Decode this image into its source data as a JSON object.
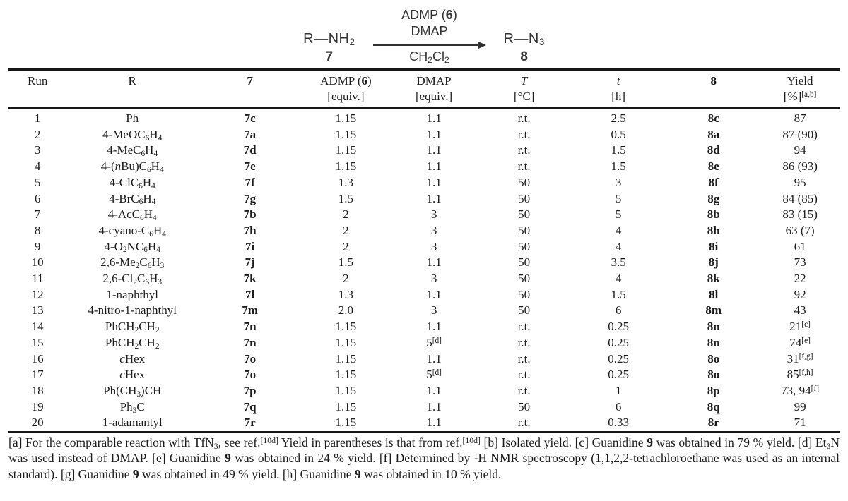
{
  "scheme": {
    "reactant": "R—NH~2~",
    "reactant_label": "7",
    "reagent_line1": "ADMP (**6**)",
    "reagent_line2": "DMAP",
    "solvent": "CH~2~Cl~2~",
    "product": "R—N~3~",
    "product_label": "8"
  },
  "table": {
    "columns": [
      {
        "key": "run",
        "line1": "Run",
        "line2": ""
      },
      {
        "key": "r",
        "line1": "R",
        "line2": ""
      },
      {
        "key": "compound-7",
        "line1": "**7**",
        "line2": ""
      },
      {
        "key": "admp-equiv",
        "line1": "ADMP (**6**)",
        "line2": "[equiv.]"
      },
      {
        "key": "dmap-equiv",
        "line1": "DMAP",
        "line2": "[equiv.]"
      },
      {
        "key": "temperature",
        "line1": "*T*",
        "line2": "[°C]"
      },
      {
        "key": "time",
        "line1": "*t*",
        "line2": "[h]"
      },
      {
        "key": "compound-8",
        "line1": "**8**",
        "line2": ""
      },
      {
        "key": "yield",
        "line1": "Yield",
        "line2": "[%]^[a,b]^"
      }
    ],
    "rows": [
      [
        "1",
        "Ph",
        "7c",
        "1.15",
        "1.1",
        "r.t.",
        "2.5",
        "8c",
        "87"
      ],
      [
        "2",
        "4-MeOC~6~H~4~",
        "7a",
        "1.15",
        "1.1",
        "r.t.",
        "0.5",
        "8a",
        "87 (90)"
      ],
      [
        "3",
        "4-MeC~6~H~4~",
        "7d",
        "1.15",
        "1.1",
        "r.t.",
        "1.5",
        "8d",
        "94"
      ],
      [
        "4",
        "4-(*n*Bu)C~6~H~4~",
        "7e",
        "1.15",
        "1.1",
        "r.t.",
        "1.5",
        "8e",
        "86 (93)"
      ],
      [
        "5",
        "4-ClC~6~H~4~",
        "7f",
        "1.3",
        "1.1",
        "50",
        "3",
        "8f",
        "95"
      ],
      [
        "6",
        "4-BrC~6~H~4~",
        "7g",
        "1.5",
        "1.1",
        "50",
        "5",
        "8g",
        "84 (85)"
      ],
      [
        "7",
        "4-AcC~6~H~4~",
        "7b",
        "2",
        "3",
        "50",
        "5",
        "8b",
        "83 (15)"
      ],
      [
        "8",
        "4-cyano-C~6~H~4~",
        "7h",
        "2",
        "3",
        "50",
        "4",
        "8h",
        "63 (7)"
      ],
      [
        "9",
        "4-O~2~NC~6~H~4~",
        "7i",
        "2",
        "3",
        "50",
        "4",
        "8i",
        "61"
      ],
      [
        "10",
        "2,6-Me~2~C~6~H~3~",
        "7j",
        "1.5",
        "1.1",
        "50",
        "3.5",
        "8j",
        "73"
      ],
      [
        "11",
        "2,6-Cl~2~C~6~H~3~",
        "7k",
        "2",
        "3",
        "50",
        "4",
        "8k",
        "22"
      ],
      [
        "12",
        "1-naphthyl",
        "7l",
        "1.3",
        "1.1",
        "50",
        "1.5",
        "8l",
        "92"
      ],
      [
        "13",
        "4-nitro-1-naphthyl",
        "7m",
        "2.0",
        "3",
        "50",
        "6",
        "8m",
        "43"
      ],
      [
        "14",
        "PhCH~2~CH~2~",
        "7n",
        "1.15",
        "1.1",
        "r.t.",
        "0.25",
        "8n",
        "21^[c]^"
      ],
      [
        "15",
        "PhCH~2~CH~2~",
        "7n",
        "1.15",
        "5^[d]^",
        "r.t.",
        "0.25",
        "8n",
        "74^[e]^"
      ],
      [
        "16",
        "*c*Hex",
        "7o",
        "1.15",
        "1.1",
        "r.t.",
        "0.25",
        "8o",
        "31^[f,g]^"
      ],
      [
        "17",
        "*c*Hex",
        "7o",
        "1.15",
        "5^[d]^",
        "r.t.",
        "0.25",
        "8o",
        "85^[f,h]^"
      ],
      [
        "18",
        "Ph(CH~3~)CH",
        "7p",
        "1.15",
        "1.1",
        "r.t.",
        "1",
        "8p",
        "73, 94^[f]^"
      ],
      [
        "19",
        "Ph~3~C",
        "7q",
        "1.15",
        "1.1",
        "50",
        "6",
        "8q",
        "99"
      ],
      [
        "20",
        "1-adamantyl",
        "7r",
        "1.15",
        "1.1",
        "r.t.",
        "0.33",
        "8r",
        "71"
      ]
    ]
  },
  "footnotes": "[a] For the comparable reaction with TfN~3~, see ref.^[10d]^ Yield in parentheses is that from ref.^[10d]^ [b] Isolated yield. [c] Guanidine **9** was obtained in 79 % yield. [d] Et~3~N was used instead of DMAP. [e] Guanidine **9** was obtained in 24 % yield. [f] Determined by ^1^H NMR spectroscopy (1,1,2,2-tetrachloroethane was used as an internal standard). [g] Guanidine **9** was obtained in 49 % yield. [h] Guanidine **9** was obtained in 10 % yield."
}
